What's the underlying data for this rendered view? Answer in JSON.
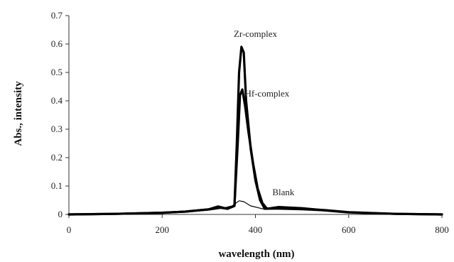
{
  "chart_data": {
    "type": "line",
    "title": "",
    "xlabel": "wavelength (nm)",
    "ylabel": "Abs., intensity",
    "xlim": [
      0,
      800
    ],
    "ylim": [
      0,
      0.7
    ],
    "x_ticks": [
      "0",
      "200",
      "400",
      "600",
      "800"
    ],
    "x_tick_values": [
      0,
      200,
      400,
      600,
      800
    ],
    "y_ticks": [
      "0",
      "0.1",
      "0.2",
      "0.3",
      "0.4",
      "0.5",
      "0.6",
      "0.7"
    ],
    "y_tick_values": [
      0,
      0.1,
      0.2,
      0.3,
      0.4,
      0.5,
      0.6,
      0.7
    ],
    "grid": false,
    "legend": "none",
    "series": [
      {
        "name": "Zr-complex",
        "color": "#000000",
        "points": [
          [
            0,
            0
          ],
          [
            100,
            0.002
          ],
          [
            200,
            0.006
          ],
          [
            250,
            0.01
          ],
          [
            300,
            0.018
          ],
          [
            320,
            0.028
          ],
          [
            340,
            0.02
          ],
          [
            355,
            0.03
          ],
          [
            360,
            0.25
          ],
          [
            365,
            0.5
          ],
          [
            370,
            0.59
          ],
          [
            375,
            0.57
          ],
          [
            380,
            0.4
          ],
          [
            390,
            0.23
          ],
          [
            400,
            0.12
          ],
          [
            410,
            0.05
          ],
          [
            420,
            0.02
          ],
          [
            450,
            0.022
          ],
          [
            500,
            0.02
          ],
          [
            550,
            0.015
          ],
          [
            600,
            0.008
          ],
          [
            700,
            0.002
          ],
          [
            800,
            0.0
          ]
        ]
      },
      {
        "name": "Hf-complex",
        "color": "#000000",
        "points": [
          [
            0,
            0
          ],
          [
            100,
            0.002
          ],
          [
            200,
            0.006
          ],
          [
            250,
            0.01
          ],
          [
            300,
            0.018
          ],
          [
            320,
            0.025
          ],
          [
            340,
            0.02
          ],
          [
            355,
            0.03
          ],
          [
            362,
            0.25
          ],
          [
            367,
            0.42
          ],
          [
            372,
            0.44
          ],
          [
            378,
            0.38
          ],
          [
            385,
            0.29
          ],
          [
            395,
            0.18
          ],
          [
            405,
            0.09
          ],
          [
            415,
            0.04
          ],
          [
            425,
            0.02
          ],
          [
            450,
            0.026
          ],
          [
            500,
            0.022
          ],
          [
            550,
            0.014
          ],
          [
            600,
            0.007
          ],
          [
            700,
            0.002
          ],
          [
            800,
            0.0
          ]
        ]
      },
      {
        "name": "Blank",
        "color": "#000000",
        "points": [
          [
            0,
            0
          ],
          [
            150,
            0.003
          ],
          [
            250,
            0.008
          ],
          [
            300,
            0.015
          ],
          [
            330,
            0.022
          ],
          [
            350,
            0.03
          ],
          [
            365,
            0.048
          ],
          [
            375,
            0.045
          ],
          [
            390,
            0.03
          ],
          [
            420,
            0.018
          ],
          [
            450,
            0.018
          ],
          [
            500,
            0.016
          ],
          [
            600,
            0.008
          ],
          [
            700,
            0.002
          ],
          [
            800,
            0.0
          ]
        ]
      }
    ],
    "annotations": [
      {
        "text": "Zr-complex",
        "x": 400,
        "y": 0.625
      },
      {
        "text": "Hf-complex",
        "x": 425,
        "y": 0.415
      },
      {
        "text": "Blank",
        "x": 460,
        "y": 0.068
      }
    ]
  }
}
